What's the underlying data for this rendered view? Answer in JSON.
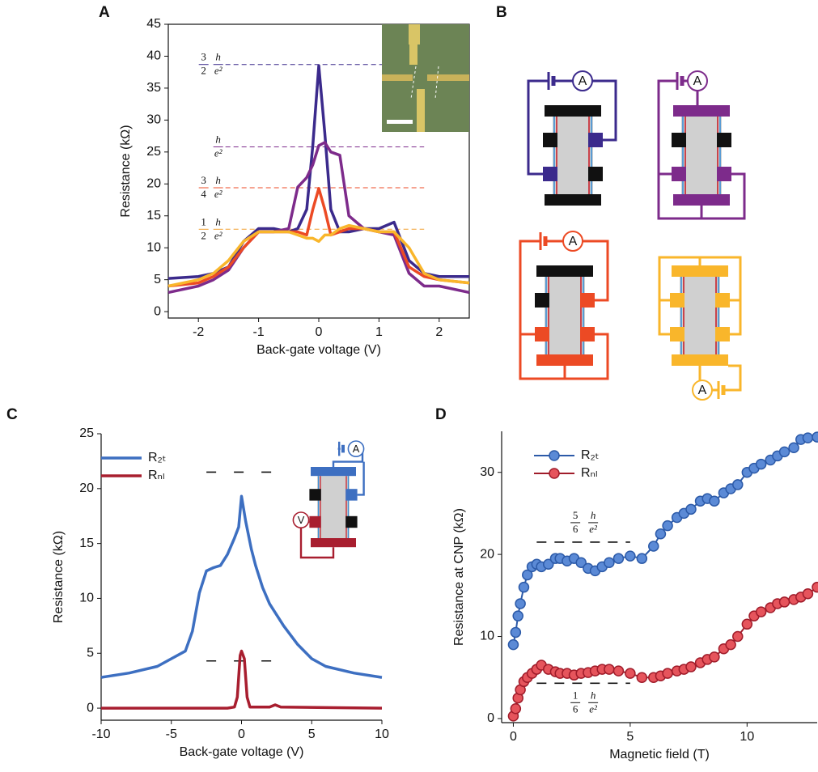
{
  "diagram": {
    "panel": "B",
    "meter_labels": [
      "A",
      "A",
      "A",
      "A"
    ]
  },
  "chart_data": [
    {
      "panel": "A",
      "type": "line",
      "xlabel": "Back-gate voltage (V)",
      "ylabel": "Resistance (kΩ)",
      "xlim": [
        -2.5,
        2.5
      ],
      "ylim": [
        -1,
        45
      ],
      "xticks": [
        -2,
        -1,
        0,
        1,
        2
      ],
      "yticks": [
        0,
        5,
        10,
        15,
        20,
        25,
        30,
        35,
        40,
        45
      ],
      "frame": true,
      "x": [
        -2.5,
        -2,
        -1.75,
        -1.5,
        -1.25,
        -1,
        -0.75,
        -0.5,
        -0.35,
        -0.2,
        -0.1,
        0,
        0.1,
        0.2,
        0.35,
        0.5,
        0.75,
        1,
        1.25,
        1.5,
        1.75,
        2,
        2.5
      ],
      "series": [
        {
          "color": "#3b2a8c",
          "values": [
            5.2,
            5.5,
            6,
            7,
            11,
            13,
            13,
            12.5,
            13,
            16,
            26,
            38.5,
            28,
            16,
            12.5,
            12.5,
            13,
            13,
            14,
            8,
            6,
            5.5,
            5.5
          ]
        },
        {
          "color": "#7d2b8b",
          "values": [
            3,
            4,
            5,
            6.5,
            10,
            12.5,
            12.5,
            13,
            19.5,
            21,
            23,
            26,
            26.5,
            25,
            24.5,
            15,
            13,
            12.5,
            12,
            6,
            4,
            4,
            3
          ]
        },
        {
          "color": "#ec4a24",
          "values": [
            4,
            4.5,
            5.5,
            7,
            10,
            12.5,
            12.5,
            12.5,
            12.5,
            12,
            16,
            19.3,
            16,
            12,
            12.5,
            13,
            13,
            12.5,
            12.5,
            7,
            5.5,
            5,
            4.5
          ]
        },
        {
          "color": "#f9b62b",
          "values": [
            4,
            5,
            6,
            8,
            11,
            12.5,
            12.5,
            12.5,
            12,
            11.5,
            11.5,
            11,
            12,
            12,
            13,
            13.5,
            13,
            12.5,
            12.5,
            10,
            6,
            5,
            4.5
          ]
        }
      ],
      "reference_lines": [
        {
          "coef": [
            "3",
            "2"
          ],
          "unit": [
            "h",
            "e²"
          ],
          "y": 38.7,
          "x": [
            -1.55,
            1.75
          ],
          "color": "#3b2a8c"
        },
        {
          "unit": [
            "h",
            "e²"
          ],
          "y": 25.8,
          "x": [
            -1.55,
            1.75
          ],
          "color": "#7d2b8b"
        },
        {
          "coef": [
            "3",
            "4"
          ],
          "unit": [
            "h",
            "e²"
          ],
          "y": 19.4,
          "x": [
            -1.55,
            1.75
          ],
          "color": "#ec4a24"
        },
        {
          "coef": [
            "1",
            "2"
          ],
          "unit": [
            "h",
            "e²"
          ],
          "y": 12.9,
          "x": [
            -1.55,
            1.75
          ],
          "color": "#f2a030"
        }
      ]
    },
    {
      "panel": "C",
      "type": "line",
      "xlabel": "Back-gate voltage (V)",
      "ylabel": "Resistance  (kΩ)",
      "xlim": [
        -10,
        10
      ],
      "ylim": [
        -1.1,
        25
      ],
      "xticks": [
        -10,
        -5,
        0,
        5,
        10
      ],
      "yticks": [
        0,
        5,
        10,
        15,
        20,
        25
      ],
      "legend": "upper left",
      "inset_meter_labels": [
        "A",
        "V"
      ],
      "series": [
        {
          "name": "R₂ₜ",
          "color": "#3d6fc1",
          "x": [
            -10,
            -8,
            -6,
            -5,
            -4,
            -3.5,
            -3,
            -2.5,
            -2,
            -1.5,
            -1,
            -0.5,
            -0.2,
            0,
            0.3,
            0.7,
            1,
            1.5,
            2,
            2.5,
            3,
            4,
            5,
            6,
            8,
            10
          ],
          "values": [
            2.8,
            3.2,
            3.8,
            4.5,
            5.2,
            7,
            10.5,
            12.5,
            12.8,
            13,
            14,
            15.5,
            16.5,
            19.3,
            17,
            14.5,
            13,
            11,
            9.5,
            8.5,
            7.5,
            5.8,
            4.5,
            3.8,
            3.2,
            2.8
          ]
        },
        {
          "name": "Rₙₗ",
          "color": "#a81e2f",
          "x": [
            -10,
            -1,
            -0.5,
            -0.3,
            -0.1,
            0,
            0.2,
            0.4,
            0.6,
            2,
            2.4,
            2.8,
            10
          ],
          "values": [
            0,
            0,
            0.1,
            1,
            4.8,
            5.2,
            4.5,
            1,
            0.1,
            0.1,
            0.3,
            0.1,
            0
          ]
        }
      ],
      "reference_lines": [
        {
          "y": 21.5,
          "x": [
            -2.5,
            2.5
          ],
          "color": "#111111"
        },
        {
          "y": 4.3,
          "x": [
            -2.5,
            2.5
          ],
          "color": "#111111"
        }
      ]
    },
    {
      "panel": "D",
      "type": "line",
      "markers": true,
      "xlabel": "Magnetic field (T)",
      "ylabel": "Resistance at CNP  (kΩ)",
      "xlim": [
        -0.5,
        13
      ],
      "ylim": [
        -0.5,
        35
      ],
      "xticks": [
        0,
        5,
        10
      ],
      "yticks": [
        0,
        10,
        20,
        30
      ],
      "legend": "upper left",
      "x": [
        0,
        0.1,
        0.2,
        0.3,
        0.45,
        0.6,
        0.8,
        1,
        1.2,
        1.5,
        1.8,
        2,
        2.3,
        2.6,
        2.9,
        3.2,
        3.5,
        3.8,
        4.1,
        4.5,
        5,
        5.5,
        6,
        6.3,
        6.6,
        7,
        7.3,
        7.6,
        8,
        8.3,
        8.6,
        9,
        9.3,
        9.6,
        10,
        10.3,
        10.6,
        11,
        11.3,
        11.6,
        12,
        12.3,
        12.6,
        13
      ],
      "series": [
        {
          "name": "R₂ₜ",
          "color": "#5b8ad6",
          "edgecolor": "#2c5aa8",
          "values": [
            9,
            10.5,
            12.5,
            14,
            16,
            17.5,
            18.5,
            18.8,
            18.5,
            18.8,
            19.5,
            19.5,
            19.2,
            19.5,
            19,
            18.3,
            18,
            18.5,
            19,
            19.5,
            19.8,
            19.5,
            21,
            22.5,
            23.5,
            24.5,
            25,
            25.5,
            26.5,
            26.8,
            26.5,
            27.5,
            28,
            28.5,
            30,
            30.5,
            31,
            31.5,
            32,
            32.5,
            33,
            34,
            34.2,
            34.3
          ]
        },
        {
          "name": "Rₙₗ",
          "color": "#e6545c",
          "edgecolor": "#a01c2a",
          "values": [
            0.3,
            1.2,
            2.5,
            3.5,
            4.5,
            5,
            5.5,
            6,
            6.5,
            6,
            5.7,
            5.5,
            5.5,
            5.3,
            5.5,
            5.6,
            5.8,
            6,
            6,
            5.8,
            5.5,
            5,
            5,
            5.2,
            5.5,
            5.8,
            6,
            6.3,
            6.8,
            7.2,
            7.5,
            8.5,
            9,
            10,
            11.5,
            12.5,
            13,
            13.5,
            14,
            14.2,
            14.5,
            14.8,
            15.2,
            16
          ]
        }
      ],
      "reference_lines": [
        {
          "coef": [
            "5",
            "6"
          ],
          "unit": [
            "h",
            "e²"
          ],
          "y": 21.5,
          "x": [
            1,
            5
          ],
          "color": "#111111"
        },
        {
          "coef": [
            "1",
            "6"
          ],
          "unit": [
            "h",
            "e²"
          ],
          "y": 4.3,
          "x": [
            1,
            5
          ],
          "color": "#111111"
        }
      ]
    }
  ]
}
